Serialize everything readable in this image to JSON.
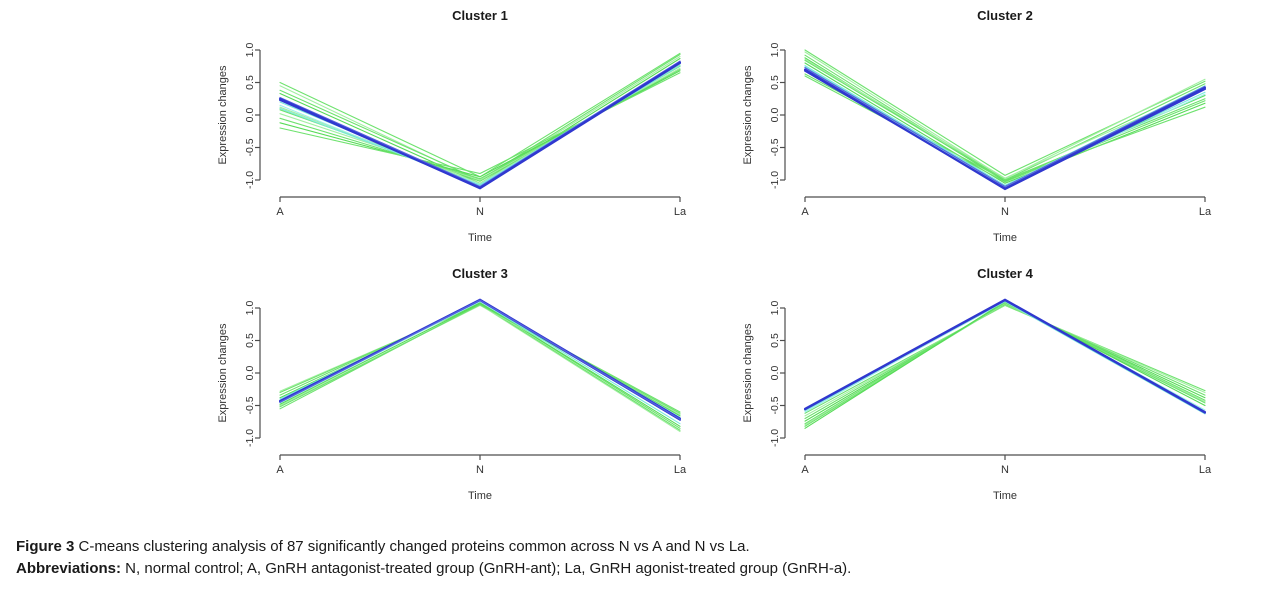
{
  "figure": {
    "caption_label": "Figure 3",
    "caption_text": " C-means clustering analysis of 87 significantly changed proteins common across N vs A and N vs La.",
    "abbrev_label": "Abbreviations:",
    "abbrev_text": " N, normal control; A, GnRH antagonist-treated group (GnRH-ant); La, GnRH agonist-treated group (GnRH-a)."
  },
  "colors": {
    "green": "#6EE26E",
    "green_pale": "#A2EFA2",
    "green_bright": "#57DB57",
    "cyan": "#7AE9DC",
    "cyan_pale": "#9FEFEA",
    "blue": "#3038CF",
    "blue_mid": "#5560DF",
    "axis": "#4d4d4d",
    "text": "#333333",
    "title": "#1a1a1a"
  },
  "chart_data": [
    {
      "type": "line",
      "title": "Cluster 1",
      "xlabel": "Time",
      "ylabel": "Expression changes",
      "categories": [
        "A",
        "N",
        "La"
      ],
      "yticks": [
        1.0,
        0.5,
        0.0,
        -0.5,
        -1.0
      ],
      "ylim": [
        -1.2,
        1.2
      ],
      "grid": false,
      "legend": "none",
      "series": [
        {
          "color": "green",
          "width": 1.1,
          "values": [
            0.5,
            -0.95,
            0.95
          ]
        },
        {
          "color": "green_pale",
          "width": 1.1,
          "values": [
            0.45,
            -1.02,
            0.9
          ]
        },
        {
          "color": "green",
          "width": 1.1,
          "values": [
            0.38,
            -1.0,
            0.93
          ]
        },
        {
          "color": "green_bright",
          "width": 1.1,
          "values": [
            0.33,
            -1.05,
            0.87
          ]
        },
        {
          "color": "green_pale",
          "width": 1.1,
          "values": [
            0.12,
            -1.05,
            0.77
          ]
        },
        {
          "color": "green",
          "width": 1.1,
          "values": [
            0.08,
            -1.02,
            0.75
          ]
        },
        {
          "color": "green_pale",
          "width": 1.1,
          "values": [
            0.02,
            -1.0,
            0.72
          ]
        },
        {
          "color": "green",
          "width": 1.1,
          "values": [
            -0.05,
            -0.98,
            0.7
          ]
        },
        {
          "color": "green_bright",
          "width": 1.1,
          "values": [
            -0.12,
            -0.95,
            0.68
          ]
        },
        {
          "color": "green",
          "width": 1.1,
          "values": [
            -0.2,
            -0.9,
            0.65
          ]
        },
        {
          "color": "cyan",
          "width": 1.1,
          "values": [
            0.2,
            -1.08,
            0.82
          ]
        },
        {
          "color": "cyan_pale",
          "width": 1.1,
          "values": [
            0.15,
            -1.1,
            0.79
          ]
        },
        {
          "color": "cyan",
          "width": 1.1,
          "values": [
            0.1,
            -1.07,
            0.76
          ]
        },
        {
          "color": "blue_mid",
          "width": 1.2,
          "values": [
            0.27,
            -1.1,
            0.83
          ]
        },
        {
          "color": "blue",
          "width": 2.0,
          "values": [
            0.25,
            -1.13,
            0.8
          ]
        },
        {
          "color": "blue",
          "width": 2.0,
          "values": [
            0.23,
            -1.12,
            0.81
          ]
        }
      ]
    },
    {
      "type": "line",
      "title": "Cluster 2",
      "xlabel": "Time",
      "ylabel": "Expression changes",
      "categories": [
        "A",
        "N",
        "La"
      ],
      "yticks": [
        1.0,
        0.5,
        0.0,
        -0.5,
        -1.0
      ],
      "ylim": [
        -1.2,
        1.2
      ],
      "grid": false,
      "legend": "none",
      "series": [
        {
          "color": "green",
          "width": 1.1,
          "values": [
            1.0,
            -0.93,
            0.52
          ]
        },
        {
          "color": "green_pale",
          "width": 1.1,
          "values": [
            0.97,
            -0.98,
            0.55
          ]
        },
        {
          "color": "green",
          "width": 1.1,
          "values": [
            0.92,
            -1.0,
            0.48
          ]
        },
        {
          "color": "green_bright",
          "width": 1.1,
          "values": [
            0.88,
            -1.02,
            0.3
          ]
        },
        {
          "color": "green_pale",
          "width": 1.1,
          "values": [
            0.86,
            -0.97,
            0.4
          ]
        },
        {
          "color": "green",
          "width": 1.1,
          "values": [
            0.84,
            -1.0,
            0.25
          ]
        },
        {
          "color": "green_bright",
          "width": 1.1,
          "values": [
            0.8,
            -1.05,
            0.18
          ]
        },
        {
          "color": "green",
          "width": 1.1,
          "values": [
            0.63,
            -1.0,
            0.12
          ]
        },
        {
          "color": "green",
          "width": 1.1,
          "values": [
            0.6,
            -1.03,
            0.22
          ]
        },
        {
          "color": "cyan",
          "width": 1.1,
          "values": [
            0.76,
            -1.08,
            0.35
          ]
        },
        {
          "color": "cyan_pale",
          "width": 1.1,
          "values": [
            0.7,
            -1.1,
            0.32
          ]
        },
        {
          "color": "cyan",
          "width": 1.1,
          "values": [
            0.74,
            -1.09,
            0.45
          ]
        },
        {
          "color": "blue_mid",
          "width": 1.2,
          "values": [
            0.73,
            -1.1,
            0.44
          ]
        },
        {
          "color": "blue",
          "width": 2.0,
          "values": [
            0.7,
            -1.14,
            0.4
          ]
        },
        {
          "color": "blue",
          "width": 2.0,
          "values": [
            0.68,
            -1.13,
            0.42
          ]
        }
      ]
    },
    {
      "type": "line",
      "title": "Cluster 3",
      "xlabel": "Time",
      "ylabel": "Expression changes",
      "categories": [
        "A",
        "N",
        "La"
      ],
      "yticks": [
        1.0,
        0.5,
        0.0,
        -0.5,
        -1.0
      ],
      "ylim": [
        -1.2,
        1.2
      ],
      "grid": false,
      "legend": "none",
      "series": [
        {
          "color": "green_pale",
          "width": 1.1,
          "values": [
            -0.28,
            1.05,
            -0.9
          ]
        },
        {
          "color": "green",
          "width": 1.1,
          "values": [
            -0.3,
            1.06,
            -0.88
          ]
        },
        {
          "color": "green",
          "width": 1.1,
          "values": [
            -0.34,
            1.08,
            -0.85
          ]
        },
        {
          "color": "green_bright",
          "width": 1.1,
          "values": [
            -0.38,
            1.08,
            -0.82
          ]
        },
        {
          "color": "green_pale",
          "width": 1.1,
          "values": [
            -0.5,
            1.04,
            -0.64
          ]
        },
        {
          "color": "green",
          "width": 1.1,
          "values": [
            -0.52,
            1.05,
            -0.62
          ]
        },
        {
          "color": "green",
          "width": 1.1,
          "values": [
            -0.55,
            1.06,
            -0.6
          ]
        },
        {
          "color": "green_bright",
          "width": 1.1,
          "values": [
            -0.48,
            1.07,
            -0.66
          ]
        },
        {
          "color": "cyan",
          "width": 1.1,
          "values": [
            -0.4,
            1.1,
            -0.78
          ]
        },
        {
          "color": "cyan_pale",
          "width": 1.1,
          "values": [
            -0.46,
            1.1,
            -0.68
          ]
        },
        {
          "color": "blue",
          "width": 2.0,
          "values": [
            -0.44,
            1.13,
            -0.7
          ]
        },
        {
          "color": "blue",
          "width": 2.0,
          "values": [
            -0.43,
            1.12,
            -0.72
          ]
        },
        {
          "color": "blue_mid",
          "width": 1.4,
          "values": [
            -0.45,
            1.12,
            -0.71
          ]
        }
      ]
    },
    {
      "type": "line",
      "title": "Cluster 4",
      "xlabel": "Time",
      "ylabel": "Expression changes",
      "categories": [
        "A",
        "N",
        "La"
      ],
      "yticks": [
        1.0,
        0.5,
        0.0,
        -0.5,
        -1.0
      ],
      "ylim": [
        -1.2,
        1.2
      ],
      "grid": false,
      "legend": "none",
      "series": [
        {
          "color": "green",
          "width": 1.1,
          "values": [
            -0.62,
            1.04,
            -0.27
          ]
        },
        {
          "color": "green_pale",
          "width": 1.1,
          "values": [
            -0.66,
            1.05,
            -0.3
          ]
        },
        {
          "color": "green",
          "width": 1.1,
          "values": [
            -0.7,
            1.06,
            -0.34
          ]
        },
        {
          "color": "green_bright",
          "width": 1.1,
          "values": [
            -0.74,
            1.06,
            -0.38
          ]
        },
        {
          "color": "green_pale",
          "width": 1.1,
          "values": [
            -0.8,
            1.07,
            -0.44
          ]
        },
        {
          "color": "green",
          "width": 1.1,
          "values": [
            -0.78,
            1.08,
            -0.42
          ]
        },
        {
          "color": "green",
          "width": 1.1,
          "values": [
            -0.82,
            1.08,
            -0.46
          ]
        },
        {
          "color": "green_bright",
          "width": 1.1,
          "values": [
            -0.85,
            1.1,
            -0.5
          ]
        },
        {
          "color": "cyan",
          "width": 1.1,
          "values": [
            -0.58,
            1.1,
            -0.63
          ]
        },
        {
          "color": "cyan_pale",
          "width": 1.1,
          "values": [
            -0.6,
            1.11,
            -0.57
          ]
        },
        {
          "color": "blue",
          "width": 2.0,
          "values": [
            -0.55,
            1.13,
            -0.6
          ]
        },
        {
          "color": "blue",
          "width": 2.0,
          "values": [
            -0.56,
            1.12,
            -0.61
          ]
        }
      ]
    }
  ]
}
